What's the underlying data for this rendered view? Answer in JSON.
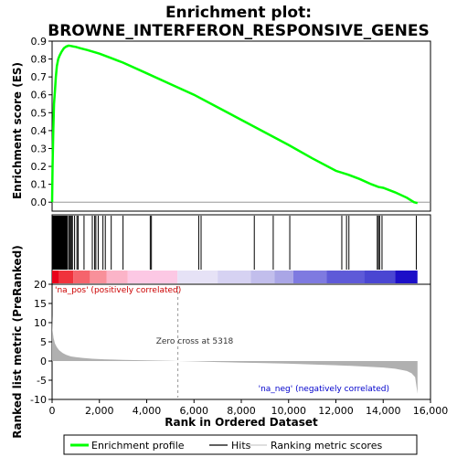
{
  "chart_data": {
    "type": "line",
    "title_line1": "Enrichment plot:",
    "title_line2": "BROWNE_INTERFERON_RESPONSIVE_GENES",
    "xlabel": "Rank in Ordered Dataset",
    "ylabel_top": "Enrichment score (ES)",
    "ylabel_bottom": "Ranked list metric (PreRanked)",
    "xlim": [
      0,
      16000
    ],
    "x_ticks": [
      0,
      2000,
      4000,
      6000,
      8000,
      10000,
      12000,
      14000,
      16000
    ],
    "x_tick_labels": [
      "0",
      "2,000",
      "4,000",
      "6,000",
      "8,000",
      "10,000",
      "12,000",
      "14,000",
      "16,000"
    ],
    "es_ylim": [
      -0.05,
      0.9
    ],
    "es_ticks": [
      0.0,
      0.1,
      0.2,
      0.3,
      0.4,
      0.5,
      0.6,
      0.7,
      0.8,
      0.9
    ],
    "es_tick_labels": [
      "0.0",
      "0.1",
      "0.2",
      "0.3",
      "0.4",
      "0.5",
      "0.6",
      "0.7",
      "0.8",
      "0.9"
    ],
    "metric_ylim": [
      -10,
      20
    ],
    "metric_ticks": [
      -10,
      -5,
      0,
      5,
      10,
      15,
      20
    ],
    "metric_tick_labels": [
      "-10",
      "-5",
      "0",
      "5",
      "10",
      "15",
      "20"
    ],
    "enrichment_profile": {
      "x": [
        0,
        20,
        50,
        80,
        120,
        160,
        200,
        260,
        320,
        400,
        500,
        600,
        700,
        800,
        900,
        1000,
        1200,
        1500,
        2000,
        2500,
        3000,
        4000,
        5000,
        6000,
        7000,
        8000,
        9000,
        10000,
        11000,
        12000,
        12500,
        13000,
        13500,
        13800,
        14000,
        14500,
        15000,
        15300,
        15450
      ],
      "y": [
        0.0,
        0.2,
        0.4,
        0.55,
        0.62,
        0.7,
        0.76,
        0.8,
        0.82,
        0.84,
        0.86,
        0.87,
        0.875,
        0.873,
        0.87,
        0.868,
        0.86,
        0.85,
        0.83,
        0.805,
        0.78,
        0.72,
        0.66,
        0.6,
        0.53,
        0.46,
        0.39,
        0.32,
        0.245,
        0.175,
        0.155,
        0.13,
        0.1,
        0.085,
        0.08,
        0.055,
        0.025,
        0.0,
        -0.005
      ]
    },
    "hits": [
      20,
      40,
      60,
      80,
      100,
      120,
      140,
      160,
      180,
      200,
      220,
      240,
      260,
      280,
      300,
      320,
      340,
      360,
      380,
      400,
      420,
      440,
      460,
      480,
      500,
      520,
      540,
      560,
      580,
      600,
      640,
      700,
      740,
      780,
      820,
      860,
      950,
      1050,
      1100,
      1350,
      1700,
      1800,
      1850,
      1950,
      2150,
      2250,
      2500,
      3000,
      4150,
      4200,
      6200,
      6300,
      8550,
      9350,
      10050,
      12250,
      12450,
      12550,
      13750,
      13800,
      13850,
      13950,
      15400
    ],
    "zero_cross": 5318,
    "zero_cross_label": "Zero cross at 5318",
    "pos_label": "'na_pos' (positively correlated)",
    "neg_label": "'na_neg' (negatively correlated)",
    "metric_profile": {
      "x": [
        0,
        20,
        60,
        120,
        200,
        300,
        450,
        600,
        800,
        1000,
        1300,
        1700,
        2200,
        3000,
        4000,
        5000,
        5318,
        6000,
        7000,
        8000,
        9000,
        10000,
        11000,
        12000,
        13000,
        14000,
        14500,
        15000,
        15200,
        15350,
        15450
      ],
      "y": [
        12,
        8,
        6,
        4.6,
        3.6,
        2.8,
        2.1,
        1.6,
        1.2,
        1.0,
        0.8,
        0.6,
        0.45,
        0.3,
        0.18,
        0.06,
        0.0,
        -0.1,
        -0.25,
        -0.4,
        -0.55,
        -0.7,
        -0.9,
        -1.1,
        -1.35,
        -1.7,
        -2.0,
        -2.6,
        -3.2,
        -4.2,
        -8.5
      ]
    },
    "heat_segments": [
      {
        "from": 0,
        "to": 300,
        "color": "#e8001a"
      },
      {
        "from": 300,
        "to": 900,
        "color": "#f0323c"
      },
      {
        "from": 900,
        "to": 1600,
        "color": "#f5646c"
      },
      {
        "from": 1600,
        "to": 2300,
        "color": "#f8909a"
      },
      {
        "from": 2300,
        "to": 3200,
        "color": "#fbb4c8"
      },
      {
        "from": 3200,
        "to": 5300,
        "color": "#fcc8e4"
      },
      {
        "from": 5300,
        "to": 7000,
        "color": "#e6e2f6"
      },
      {
        "from": 7000,
        "to": 8400,
        "color": "#d6d2f2"
      },
      {
        "from": 8400,
        "to": 9400,
        "color": "#c2beec"
      },
      {
        "from": 9400,
        "to": 10200,
        "color": "#aaa6e6"
      },
      {
        "from": 10200,
        "to": 11600,
        "color": "#7e7ae0"
      },
      {
        "from": 11600,
        "to": 13200,
        "color": "#5e5ad8"
      },
      {
        "from": 13200,
        "to": 14500,
        "color": "#4a46d2"
      },
      {
        "from": 14500,
        "to": 15450,
        "color": "#1c0fc8"
      }
    ],
    "colors": {
      "profile": "#00ff00",
      "hits": "#000000",
      "metric_fill": "#b0b0b0",
      "pos_text": "#cc0000",
      "neg_text": "#0000cc"
    },
    "legend": [
      "Enrichment profile",
      "Hits",
      "Ranking metric scores"
    ]
  }
}
